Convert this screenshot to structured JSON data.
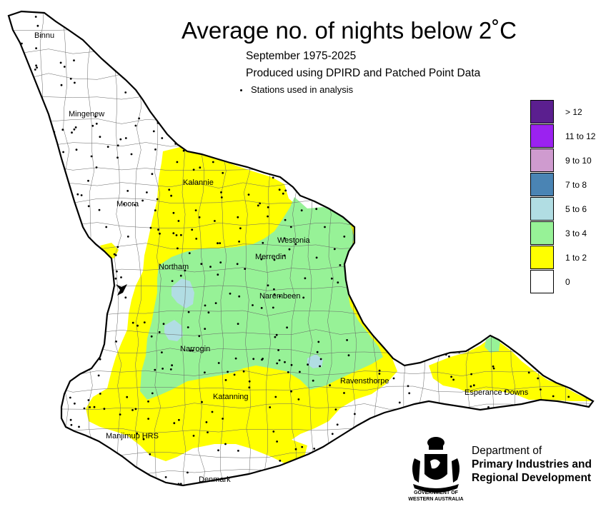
{
  "title": "Average no. of nights below 2˚C",
  "subtitle_period": "September 1975-2025",
  "subtitle_source": "Produced using DPIRD and Patched Point Data",
  "stations_note": "Stations used in analysis",
  "legend": [
    {
      "label": "> 12",
      "color": "#5b1f8f"
    },
    {
      "label": "11 to 12",
      "color": "#9b22f0"
    },
    {
      "label": "9 to 10",
      "color": "#cf9bcf"
    },
    {
      "label": "7 to 8",
      "color": "#4a84b4"
    },
    {
      "label": "5 to 6",
      "color": "#b1dde3"
    },
    {
      "label": "3 to 4",
      "color": "#97f297"
    },
    {
      "label": "1 to 2",
      "color": "#ffff00"
    },
    {
      "label": "0",
      "color": "#ffffff"
    }
  ],
  "places": {
    "binnu": "Binnu",
    "mingenew": "Mingenew",
    "kalannie": "Kalannie",
    "moora": "Moora",
    "westonia": "Westonia",
    "merredin": "Merredin",
    "northam": "Northam",
    "narembeen": "Narembeen",
    "narrogin": "Narrogin",
    "ravensthorpe": "Ravensthorpe",
    "esperance_downs": "Esperance Downs",
    "katanning": "Katanning",
    "manjimup": "Manjimup HRS",
    "denmark": "Denmark"
  },
  "department": {
    "line1": "Department of",
    "line2": "Primary Industries and",
    "line3": "Regional Development"
  },
  "government": {
    "line1": "GOVERNMENT OF",
    "line2": "WESTERN AUSTRALIA"
  },
  "crest_icon": "wa-government-crest-icon"
}
